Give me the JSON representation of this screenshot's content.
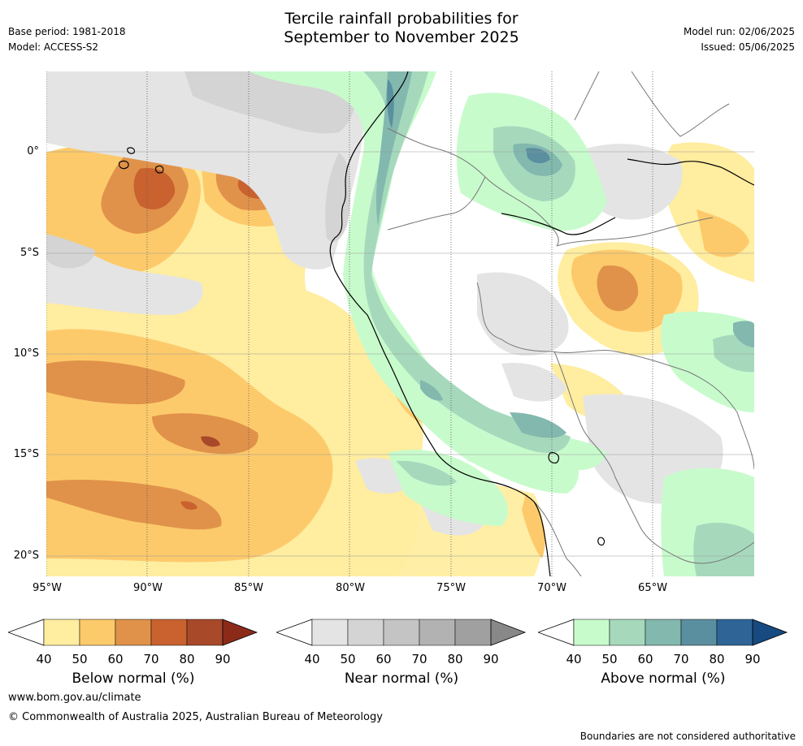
{
  "header": {
    "title_line1": "Tercile rainfall probabilities for",
    "title_line2": "September to November 2025",
    "base_period": "Base period: 1981-2018",
    "model": "Model: ACCESS-S2",
    "model_run": "Model run: 02/06/2025",
    "issued": "Issued: 05/06/2025"
  },
  "map": {
    "x_ticks": [
      "95°W",
      "90°W",
      "85°W",
      "80°W",
      "75°W",
      "70°W",
      "65°W"
    ],
    "y_ticks": [
      "0°",
      "5°S",
      "10°S",
      "15°S",
      "20°S"
    ],
    "lon_range": [
      -95,
      -60
    ],
    "lat_range": [
      -21,
      4
    ]
  },
  "legends": [
    {
      "title": "Below normal (%)",
      "labels": [
        "40",
        "50",
        "60",
        "70",
        "80",
        "90"
      ],
      "colors": [
        "#ffeda0",
        "#fdca6b",
        "#e0924a",
        "#c9622f",
        "#a8492a",
        "#8c2a1a"
      ]
    },
    {
      "title": "Near normal (%)",
      "labels": [
        "40",
        "50",
        "60",
        "70",
        "80",
        "90"
      ],
      "colors": [
        "#e4e4e4",
        "#d4d4d4",
        "#c4c4c4",
        "#b2b2b2",
        "#a0a0a0",
        "#888888"
      ]
    },
    {
      "title": "Above normal (%)",
      "labels": [
        "40",
        "50",
        "60",
        "70",
        "80",
        "90"
      ],
      "colors": [
        "#c8fbcc",
        "#a6d9bc",
        "#82b8ae",
        "#5a8f9f",
        "#2f6497",
        "#164a80"
      ]
    }
  ],
  "footer": {
    "website": "www.bom.gov.au/climate",
    "copyright": "© Commonwealth of Australia 2025, Australian Bureau of Meteorology",
    "disclaimer": "Boundaries are not considered authoritative"
  }
}
